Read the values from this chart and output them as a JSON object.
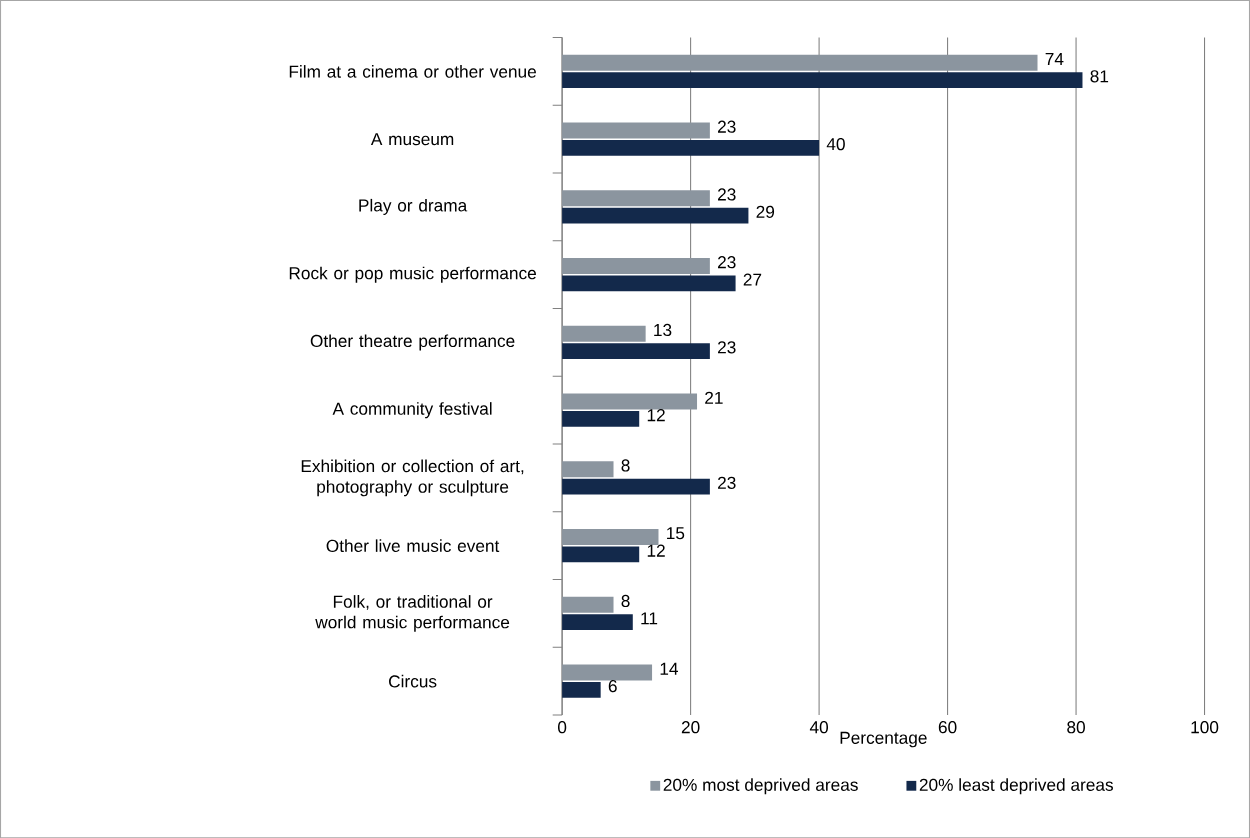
{
  "chart_data": {
    "type": "bar",
    "orientation": "horizontal",
    "xlabel": "Percentage",
    "categories": [
      "Film at a cinema or other venue",
      "A museum",
      "Play or drama",
      "Rock or pop music performance",
      "Other theatre performance",
      "A community festival",
      "Exhibition or collection of art, photography or sculpture",
      "Other live music event",
      "Folk, or traditional or world music performance",
      "Circus"
    ],
    "series": [
      {
        "name": "20% most deprived areas",
        "color": "#8b959f",
        "values": [
          74,
          23,
          23,
          23,
          13,
          21,
          8,
          15,
          8,
          14
        ]
      },
      {
        "name": "20% least deprived areas",
        "color": "#13294b",
        "values": [
          81,
          40,
          29,
          27,
          23,
          12,
          23,
          12,
          11,
          6
        ]
      }
    ],
    "xlim": [
      0,
      100
    ],
    "xticks": [
      0,
      20,
      40,
      60,
      80,
      100
    ],
    "grid": "x",
    "legend": "bottom",
    "data_labels": true
  }
}
